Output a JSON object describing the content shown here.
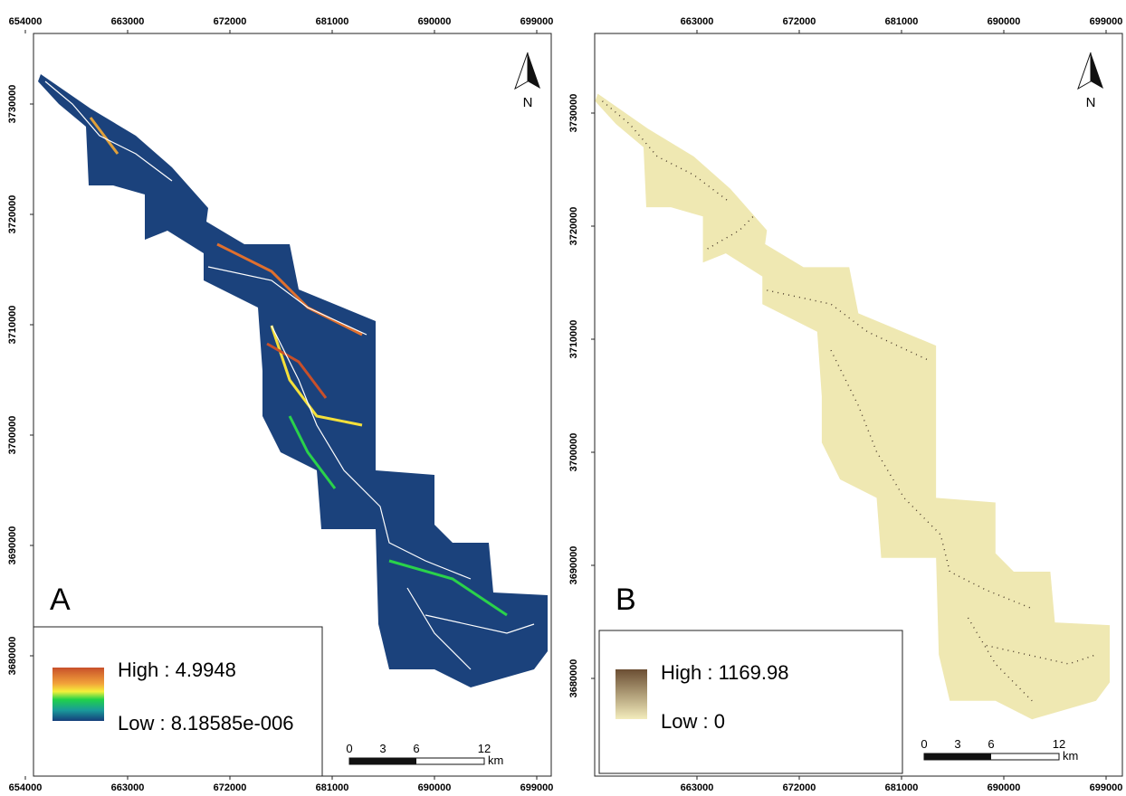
{
  "panels": [
    {
      "label": "A",
      "x_ticks": [
        "654000",
        "663000",
        "672000",
        "681000",
        "690000",
        "699000"
      ],
      "y_ticks": [
        "3730000",
        "3720000",
        "3710000",
        "3700000",
        "3690000",
        "3680000"
      ],
      "north": "N",
      "legend": {
        "high": "High : 4.9948",
        "low": "Low : 8.18585e-006"
      },
      "scale": {
        "labels": [
          "0",
          "3",
          "6",
          "12"
        ],
        "unit": "km"
      }
    },
    {
      "label": "B",
      "x_ticks": [
        "663000",
        "672000",
        "681000",
        "690000",
        "699000"
      ],
      "y_ticks": [
        "3730000",
        "3720000",
        "3710000",
        "3700000",
        "3690000",
        "3680000"
      ],
      "north": "N",
      "legend": {
        "high": "High : 1169.98",
        "low": "Low : 0"
      },
      "scale": {
        "labels": [
          "0",
          "3",
          "6",
          "12"
        ],
        "unit": "km"
      }
    }
  ]
}
